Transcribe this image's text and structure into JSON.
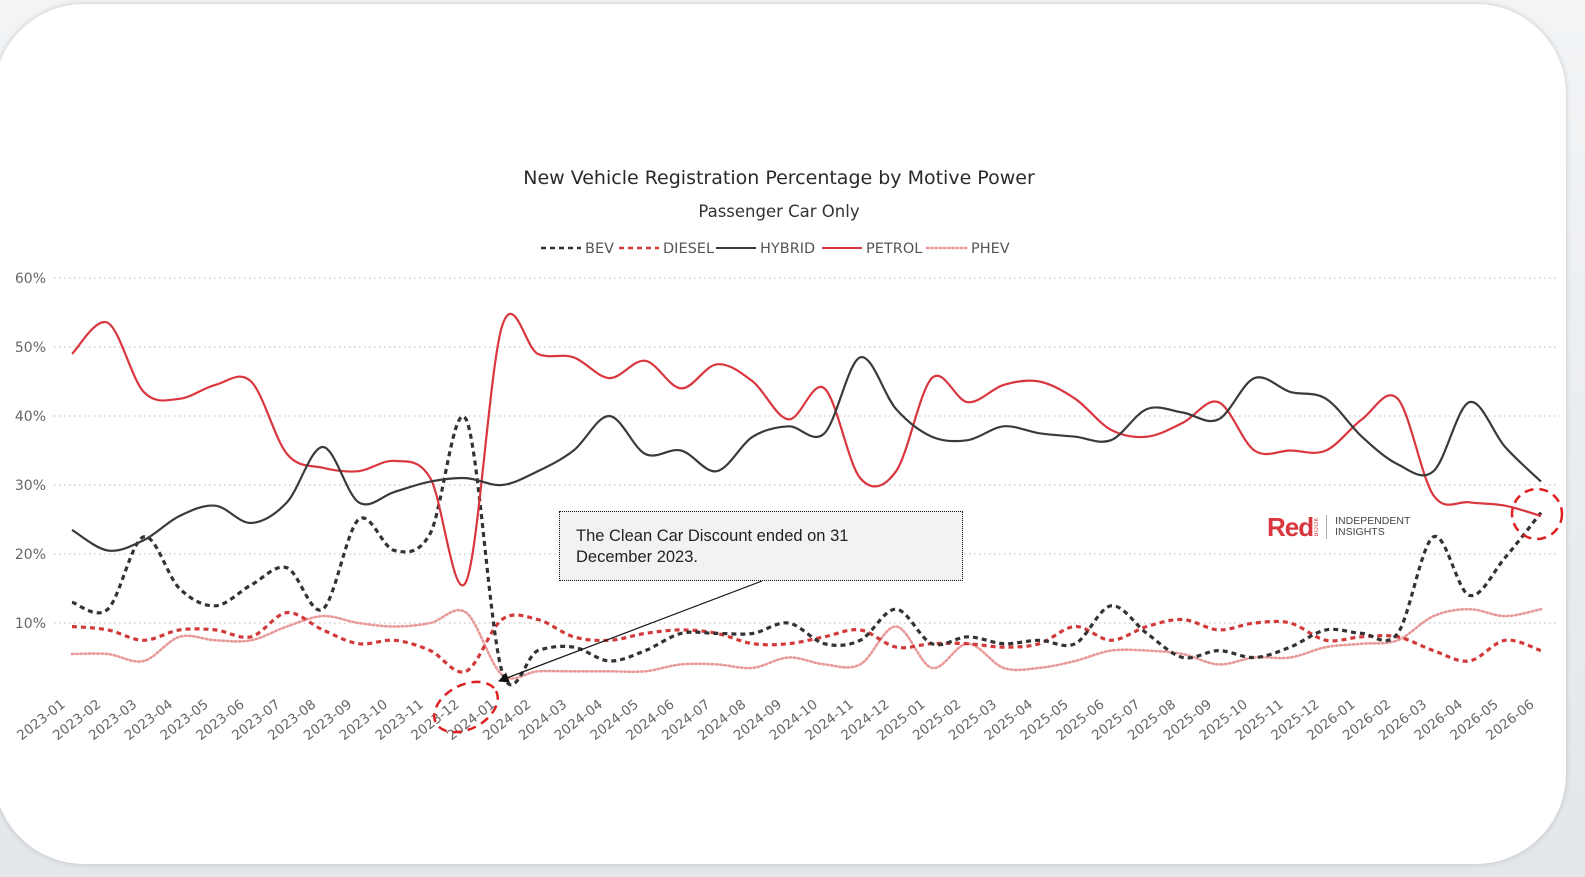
{
  "annotation": {
    "text_line1": "The Clean Car Discount ended on 31",
    "text_line2": "December 2023."
  },
  "brand": {
    "name": "Red",
    "sub": "BOOK",
    "tagline_line1": "INDEPENDENT",
    "tagline_line2": "INSIGHTS"
  },
  "chart_data": {
    "type": "line",
    "title": "New Vehicle Registration Percentage by Motive Power",
    "subtitle": "Passenger Car Only",
    "xlabel": "",
    "ylabel": "",
    "ylim": [
      0,
      60
    ],
    "yticks": [
      "10%",
      "20%",
      "30%",
      "40%",
      "50%",
      "60%"
    ],
    "grid": true,
    "legend_position": "top-center",
    "categories": [
      "2023-01",
      "2023-02",
      "2023-03",
      "2023-04",
      "2023-05",
      "2023-06",
      "2023-07",
      "2023-08",
      "2023-09",
      "2023-10",
      "2023-11",
      "2023-12",
      "2024-01",
      "2024-02",
      "2024-03",
      "2024-04",
      "2024-05",
      "2024-06",
      "2024-07",
      "2024-08",
      "2024-09",
      "2024-10",
      "2024-11",
      "2024-12",
      "2025-01",
      "2025-02",
      "2025-03",
      "2025-04",
      "2025-05",
      "2025-06",
      "2025-07",
      "2025-08",
      "2025-09",
      "2025-10",
      "2025-11",
      "2025-12",
      "2026-01",
      "2026-02",
      "2026-03",
      "2026-04",
      "2026-05",
      "2026-06"
    ],
    "series": [
      {
        "name": "BEV",
        "color": "#333333",
        "style": "dashed",
        "values": [
          13.0,
          12.0,
          22.5,
          15.0,
          12.5,
          15.5,
          18.0,
          12.0,
          25.0,
          20.5,
          23.0,
          39.5,
          3.0,
          6.0,
          6.5,
          4.5,
          6.0,
          8.5,
          8.5,
          8.5,
          10.0,
          7.0,
          7.5,
          12.0,
          7.0,
          8.0,
          7.0,
          7.5,
          7.0,
          12.5,
          8.5,
          5.0,
          6.0,
          5.0,
          6.5,
          9.0,
          8.5,
          8.5,
          22.5,
          14.0,
          19.5,
          26.0
        ]
      },
      {
        "name": "DIESEL",
        "color": "#d23a3a",
        "style": "dashed",
        "values": [
          9.5,
          9.0,
          7.5,
          9.0,
          9.0,
          8.0,
          11.5,
          9.0,
          7.0,
          7.5,
          6.0,
          3.0,
          10.5,
          10.5,
          8.0,
          7.5,
          8.5,
          9.0,
          8.5,
          7.0,
          7.0,
          8.0,
          9.0,
          6.5,
          7.0,
          7.0,
          6.5,
          7.0,
          9.5,
          7.5,
          9.5,
          10.5,
          9.0,
          10.0,
          10.0,
          7.5,
          8.0,
          8.0,
          6.0,
          4.5,
          7.5,
          6.0
        ]
      },
      {
        "name": "HYBRID",
        "color": "#3a3a3a",
        "style": "solid",
        "values": [
          23.5,
          20.5,
          22.0,
          25.5,
          27.0,
          24.5,
          27.5,
          35.5,
          27.5,
          29.0,
          30.5,
          31.0,
          30.0,
          32.0,
          35.0,
          40.0,
          34.5,
          35.0,
          32.0,
          37.0,
          38.5,
          37.5,
          48.5,
          41.0,
          37.0,
          36.5,
          38.5,
          37.5,
          37.0,
          36.5,
          41.0,
          40.5,
          39.5,
          45.5,
          43.5,
          42.5,
          37.0,
          33.0,
          32.0,
          42.0,
          35.5,
          30.5
        ]
      },
      {
        "name": "PETROL",
        "color": "#d9363e",
        "style": "solid",
        "values": [
          49.0,
          53.5,
          43.5,
          42.5,
          44.5,
          45.0,
          34.5,
          32.5,
          32.0,
          33.5,
          31.0,
          16.0,
          53.0,
          49.0,
          48.5,
          45.5,
          48.0,
          44.0,
          47.5,
          45.0,
          39.5,
          44.0,
          31.0,
          32.0,
          45.5,
          42.0,
          44.5,
          45.0,
          42.5,
          38.0,
          37.0,
          39.0,
          42.0,
          35.0,
          35.0,
          35.0,
          39.5,
          42.5,
          28.5,
          27.5,
          27.0,
          25.5
        ]
      },
      {
        "name": "PHEV",
        "color": "#e89a9a",
        "style": "dotted",
        "values": [
          5.5,
          5.5,
          4.5,
          8.0,
          7.5,
          7.5,
          9.5,
          11.0,
          10.0,
          9.5,
          10.0,
          11.5,
          2.5,
          3.0,
          3.0,
          3.0,
          3.0,
          4.0,
          4.0,
          3.5,
          5.0,
          4.0,
          4.0,
          9.5,
          3.5,
          7.0,
          3.5,
          3.5,
          4.5,
          6.0,
          6.0,
          5.5,
          4.0,
          5.0,
          5.0,
          6.5,
          7.0,
          7.5,
          11.0,
          12.0,
          11.0,
          12.0
        ]
      }
    ]
  }
}
